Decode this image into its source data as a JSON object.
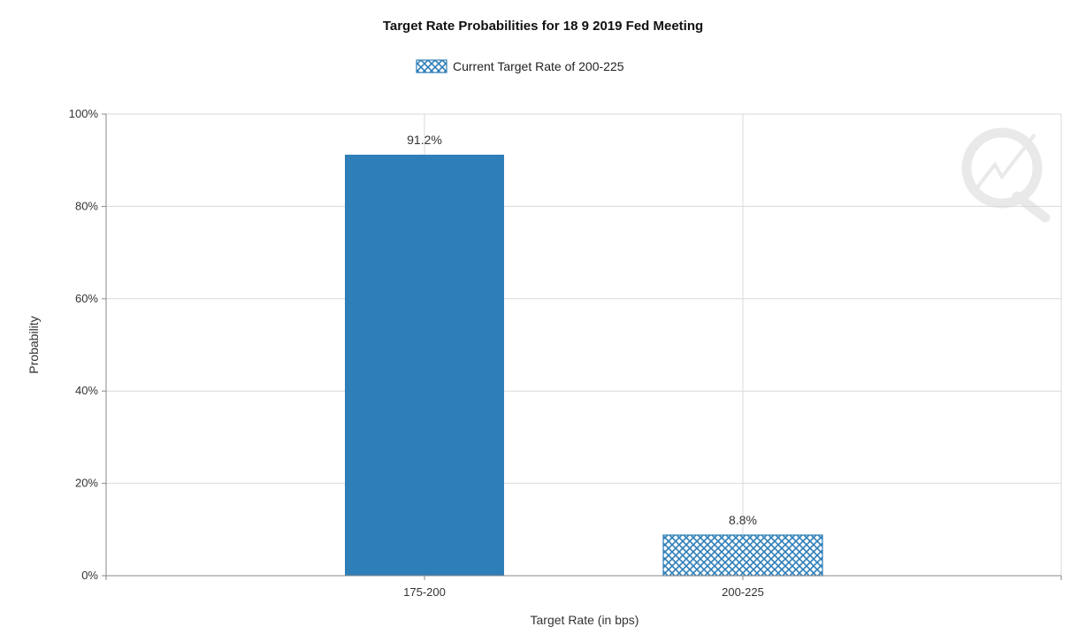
{
  "chart_data": {
    "type": "bar",
    "title": "Target Rate Probabilities for 18 9 2019 Fed Meeting",
    "xlabel": "Target Rate (in bps)",
    "ylabel": "Probability",
    "categories": [
      "175-200",
      "200-225"
    ],
    "values": [
      91.2,
      8.8
    ],
    "data_labels": [
      "91.2%",
      "8.8%"
    ],
    "ylim": [
      0,
      100
    ],
    "y_ticks": [
      0,
      20,
      40,
      60,
      80,
      100
    ],
    "y_tick_labels": [
      "0%",
      "20%",
      "40%",
      "60%",
      "80%",
      "100%"
    ],
    "grid": true,
    "legend": {
      "placement": "top-center",
      "entries": [
        {
          "label": "Current Target Rate of 200-225",
          "pattern": "crosshatch"
        }
      ]
    },
    "highlight_category": "200-225",
    "colors": {
      "bar": "#2e7eb8",
      "hatch_bg": "#ffffff",
      "grid": "#d9d9d9",
      "axis": "#888888"
    }
  }
}
